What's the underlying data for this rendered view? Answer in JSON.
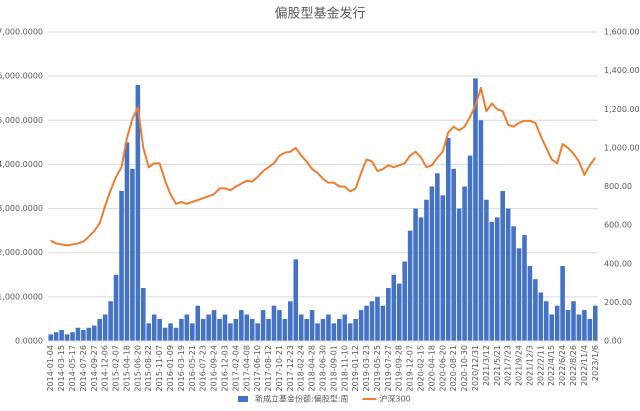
{
  "chart_data": {
    "type": "bar-line",
    "title": "偏股型基金发行",
    "categories": [
      "2014-01-04",
      null,
      "2014-03-15",
      null,
      "2014-05-17",
      null,
      "2014-07-26",
      null,
      "2014-09-27",
      null,
      "2014-12-06",
      null,
      "2015-02-07",
      null,
      "2015-04-18",
      null,
      "2015-06-20",
      null,
      "2015-08-22",
      null,
      "2015-11-07",
      null,
      "2016-01-09",
      null,
      "2016-03-19",
      null,
      "2016-05-21",
      null,
      "2016-07-23",
      null,
      "2016-09-24",
      null,
      "2016-12-03",
      null,
      "2017-02-04",
      null,
      "2017-04-08",
      null,
      "2017-06-10",
      null,
      "2017-08-12",
      null,
      "2017-10-21",
      null,
      "2017-12-23",
      null,
      "2018-02-24",
      null,
      "2018-04-28",
      null,
      "2018-06-30",
      null,
      "2018-09-01",
      null,
      "2018-11-10",
      null,
      "2019-01-12",
      null,
      "2019-03-23",
      null,
      "2019-05-25",
      null,
      "2019-07-27",
      null,
      "2019-09-28",
      null,
      "2019-12-07",
      null,
      "2020-02-15",
      null,
      "2020-04-18",
      null,
      "2020-06-20",
      null,
      "2020-08-21",
      null,
      "2020-10-30",
      null,
      "2020/12/31",
      null,
      "2021/3/12",
      null,
      "2021/5/21",
      null,
      "2021/7/23",
      null,
      "2021/9/24",
      null,
      "2021/12/3",
      null,
      "2022/2/11",
      null,
      "2022/4/15",
      null,
      "2022/6/24",
      null,
      "2022/8/26",
      null,
      "2022/11/4",
      null,
      "2023/1/6"
    ],
    "series": [
      {
        "name": "新成立基金份额:偏股型:周",
        "type": "bar",
        "color": "#4472c4",
        "values": [
          150,
          200,
          250,
          150,
          200,
          300,
          250,
          300,
          350,
          500,
          600,
          900,
          1500,
          3400,
          4500,
          3900,
          5800,
          1200,
          400,
          600,
          500,
          300,
          400,
          300,
          500,
          600,
          400,
          800,
          500,
          600,
          700,
          500,
          600,
          400,
          500,
          700,
          600,
          500,
          400,
          700,
          500,
          800,
          700,
          500,
          900,
          1850,
          600,
          500,
          700,
          400,
          500,
          600,
          400,
          500,
          600,
          400,
          500,
          700,
          800,
          900,
          1000,
          800,
          1200,
          1500,
          1300,
          1800,
          2500,
          3000,
          2800,
          3200,
          3500,
          3800,
          3300,
          4600,
          3900,
          3000,
          3500,
          4200,
          5950,
          5000,
          3200,
          2700,
          2800,
          3400,
          3000,
          2600,
          2100,
          2400,
          1700,
          1400,
          1100,
          900,
          600,
          800,
          1700,
          700,
          900,
          600,
          700,
          500,
          800
        ]
      },
      {
        "name": "沪深300",
        "type": "line",
        "axis": "y2",
        "color": "#ed7d31",
        "values": [
          520,
          505,
          500,
          495,
          500,
          505,
          515,
          540,
          570,
          610,
          700,
          780,
          850,
          900,
          1050,
          1150,
          1210,
          1000,
          900,
          920,
          920,
          830,
          760,
          710,
          720,
          710,
          720,
          730,
          740,
          750,
          760,
          790,
          790,
          780,
          800,
          815,
          830,
          825,
          850,
          880,
          900,
          920,
          960,
          975,
          980,
          1000,
          960,
          930,
          890,
          870,
          840,
          820,
          820,
          800,
          800,
          775,
          790,
          870,
          940,
          930,
          880,
          890,
          910,
          900,
          910,
          920,
          960,
          980,
          950,
          900,
          910,
          950,
          980,
          1080,
          1110,
          1090,
          1110,
          1160,
          1220,
          1310,
          1190,
          1230,
          1200,
          1190,
          1120,
          1110,
          1130,
          1140,
          1140,
          1130,
          1060,
          1000,
          940,
          920,
          1020,
          1000,
          970,
          930,
          860,
          910,
          950
        ]
      }
    ],
    "ylim": [
      0,
      7000
    ],
    "yticks": [
      {
        "value": 0,
        "label": "0.0000"
      },
      {
        "value": 1000,
        "label": "1,000.0000"
      },
      {
        "value": 2000,
        "label": "2,000.0000"
      },
      {
        "value": 3000,
        "label": "3,000.0000"
      },
      {
        "value": 4000,
        "label": "4,000.0000"
      },
      {
        "value": 5000,
        "label": "5,000.0000"
      },
      {
        "value": 6000,
        "label": "6,000.0000"
      },
      {
        "value": 7000,
        "label": "7,000.0000"
      }
    ],
    "y2lim": [
      0,
      1600
    ],
    "y2ticks": [
      {
        "value": 0,
        "label": "0.00"
      },
      {
        "value": 200,
        "label": "200.00"
      },
      {
        "value": 400,
        "label": "400.00"
      },
      {
        "value": 600,
        "label": "600.00"
      },
      {
        "value": 800,
        "label": "800.00"
      },
      {
        "value": 1000,
        "label": "1,000.00"
      },
      {
        "value": 1200,
        "label": "1,200.00"
      },
      {
        "value": 1400,
        "label": "1,400.00"
      },
      {
        "value": 1600,
        "label": "1,600.00"
      }
    ],
    "grid": true,
    "legend": "bottom"
  }
}
